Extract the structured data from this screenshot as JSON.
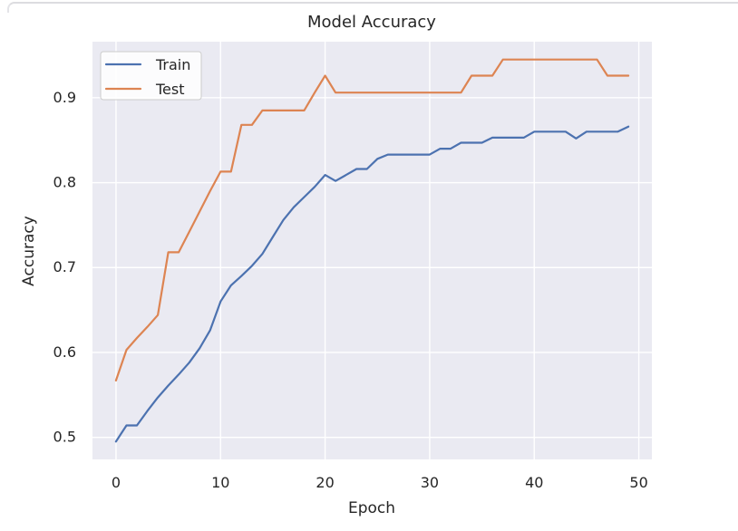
{
  "chart_data": {
    "type": "line",
    "title": "Model Accuracy",
    "xlabel": "Epoch",
    "ylabel": "Accuracy",
    "x": [
      0,
      1,
      2,
      3,
      4,
      5,
      6,
      7,
      8,
      9,
      10,
      11,
      12,
      13,
      14,
      15,
      16,
      17,
      18,
      19,
      20,
      21,
      22,
      23,
      24,
      25,
      26,
      27,
      28,
      29,
      30,
      31,
      32,
      33,
      34,
      35,
      36,
      37,
      38,
      39,
      40,
      41,
      42,
      43,
      44,
      45,
      46,
      47,
      48,
      49
    ],
    "series": [
      {
        "name": "Train",
        "color": "#4C72B0",
        "values": [
          0.495,
          0.514,
          0.514,
          0.531,
          0.547,
          0.561,
          0.574,
          0.588,
          0.605,
          0.626,
          0.66,
          0.679,
          0.69,
          0.702,
          0.716,
          0.736,
          0.756,
          0.771,
          0.783,
          0.795,
          0.809,
          0.802,
          0.809,
          0.816,
          0.816,
          0.828,
          0.833,
          0.833,
          0.833,
          0.833,
          0.833,
          0.84,
          0.84,
          0.847,
          0.847,
          0.847,
          0.853,
          0.853,
          0.853,
          0.853,
          0.86,
          0.86,
          0.86,
          0.86,
          0.852,
          0.86,
          0.86,
          0.86,
          0.86,
          0.866
        ]
      },
      {
        "name": "Test",
        "color": "#DD8452",
        "values": [
          0.567,
          0.603,
          0.617,
          0.63,
          0.644,
          0.718,
          0.718,
          0.742,
          0.766,
          0.79,
          0.813,
          0.813,
          0.868,
          0.868,
          0.885,
          0.885,
          0.885,
          0.885,
          0.885,
          0.906,
          0.926,
          0.906,
          0.906,
          0.906,
          0.906,
          0.906,
          0.906,
          0.906,
          0.906,
          0.906,
          0.906,
          0.906,
          0.906,
          0.906,
          0.926,
          0.926,
          0.926,
          0.945,
          0.945,
          0.945,
          0.945,
          0.945,
          0.945,
          0.945,
          0.945,
          0.945,
          0.945,
          0.926,
          0.926,
          0.926
        ]
      }
    ],
    "xticks": [
      0,
      10,
      20,
      30,
      40,
      50
    ],
    "yticks": [
      0.5,
      0.6,
      0.7,
      0.8,
      0.9
    ],
    "xlim": [
      -2.25,
      51.25
    ],
    "ylim": [
      0.474,
      0.966
    ],
    "grid": true,
    "legend_position": "upper left",
    "styles": {
      "figure_bg": "#FFFFFF",
      "axes_bg": "#EAEAF2",
      "grid_color": "#FFFFFF",
      "text_color": "#262626",
      "legend_bg": "#FFFFFF",
      "legend_border": "#CCCCCC",
      "top_rule_color": "#DCDCE0"
    }
  }
}
